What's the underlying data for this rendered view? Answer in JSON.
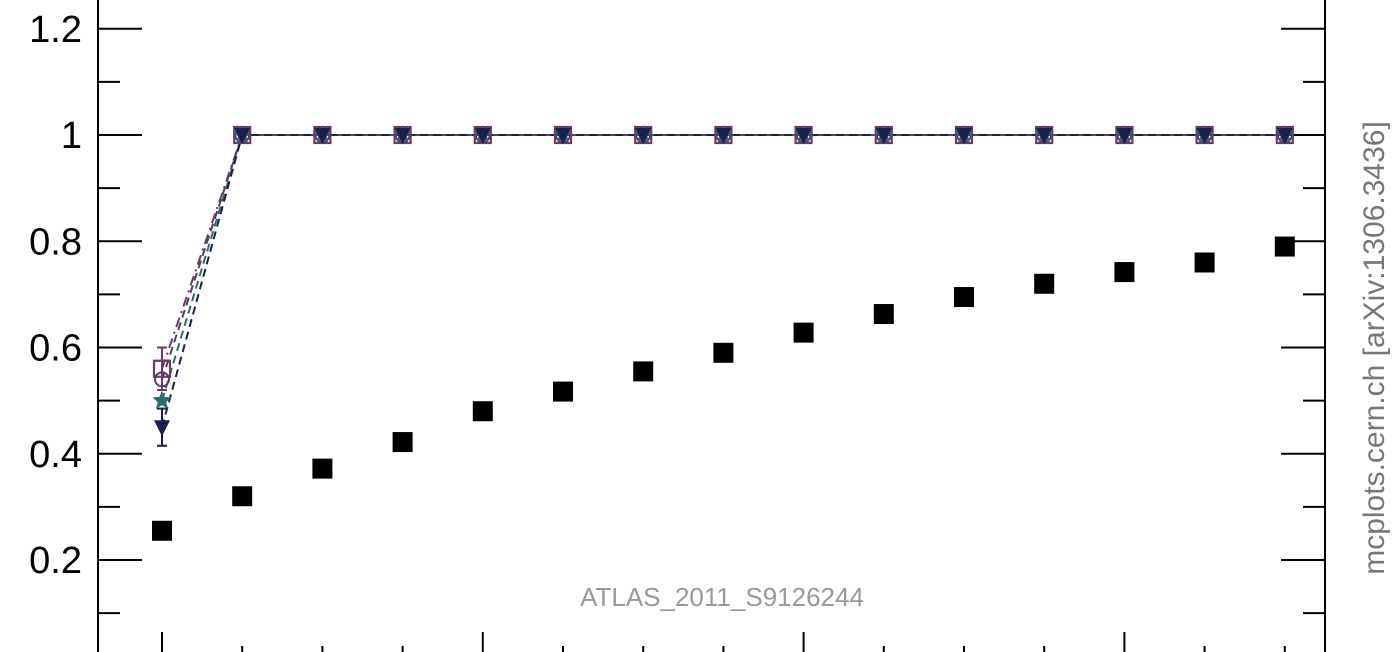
{
  "chart_data": {
    "type": "scatter",
    "title": "",
    "xlabel": "",
    "ylabel": "",
    "ylim": [
      0.03,
      1.25
    ],
    "x_bins": [
      1,
      2,
      3,
      4,
      5,
      6,
      7,
      8,
      9,
      10,
      11,
      12,
      13,
      14,
      15
    ],
    "yticks": [
      {
        "value": 0.2,
        "label": "0.2"
      },
      {
        "value": 0.4,
        "label": "0.4"
      },
      {
        "value": 0.6,
        "label": "0.6"
      },
      {
        "value": 0.8,
        "label": "0.8"
      },
      {
        "value": 1.0,
        "label": "1"
      },
      {
        "value": 1.2,
        "label": "1.2"
      }
    ],
    "series": [
      {
        "marker": "filled-square",
        "color": "#000000",
        "line": "none",
        "values": [
          0.255,
          0.32,
          0.372,
          0.422,
          0.48,
          0.517,
          0.555,
          0.59,
          0.628,
          0.663,
          0.695,
          0.72,
          0.742,
          0.76,
          0.79
        ]
      },
      {
        "marker": "open-square",
        "color": "#6b3a6b",
        "line": "dash-dot",
        "values": [
          0.56,
          1,
          1,
          1,
          1,
          1,
          1,
          1,
          1,
          1,
          1,
          1,
          1,
          1,
          1
        ],
        "err": [
          0.04
        ]
      },
      {
        "marker": "open-circle",
        "color": "#5a3a6e",
        "line": "dashed",
        "values": [
          0.54,
          1,
          1,
          1,
          1,
          1,
          1,
          1,
          1,
          1,
          1,
          1,
          1,
          1,
          1
        ]
      },
      {
        "marker": "filled-star",
        "color": "#2f6b6b",
        "line": "dashed",
        "values": [
          0.5,
          1,
          1,
          1,
          1,
          1,
          1,
          1,
          1,
          1,
          1,
          1,
          1,
          1,
          1
        ]
      },
      {
        "marker": "filled-triangle-down",
        "color": "#1a1f4d",
        "line": "dashed",
        "values": [
          0.45,
          1,
          1,
          1,
          1,
          1,
          1,
          1,
          1,
          1,
          1,
          1,
          1,
          1,
          1
        ],
        "err": [
          0.035
        ]
      }
    ],
    "grid": false,
    "legend": "none"
  },
  "annotations": {
    "analysis_id": "ATLAS_2011_S9126244",
    "source": "mcplots.cern.ch [arXiv:1306.3436]"
  }
}
